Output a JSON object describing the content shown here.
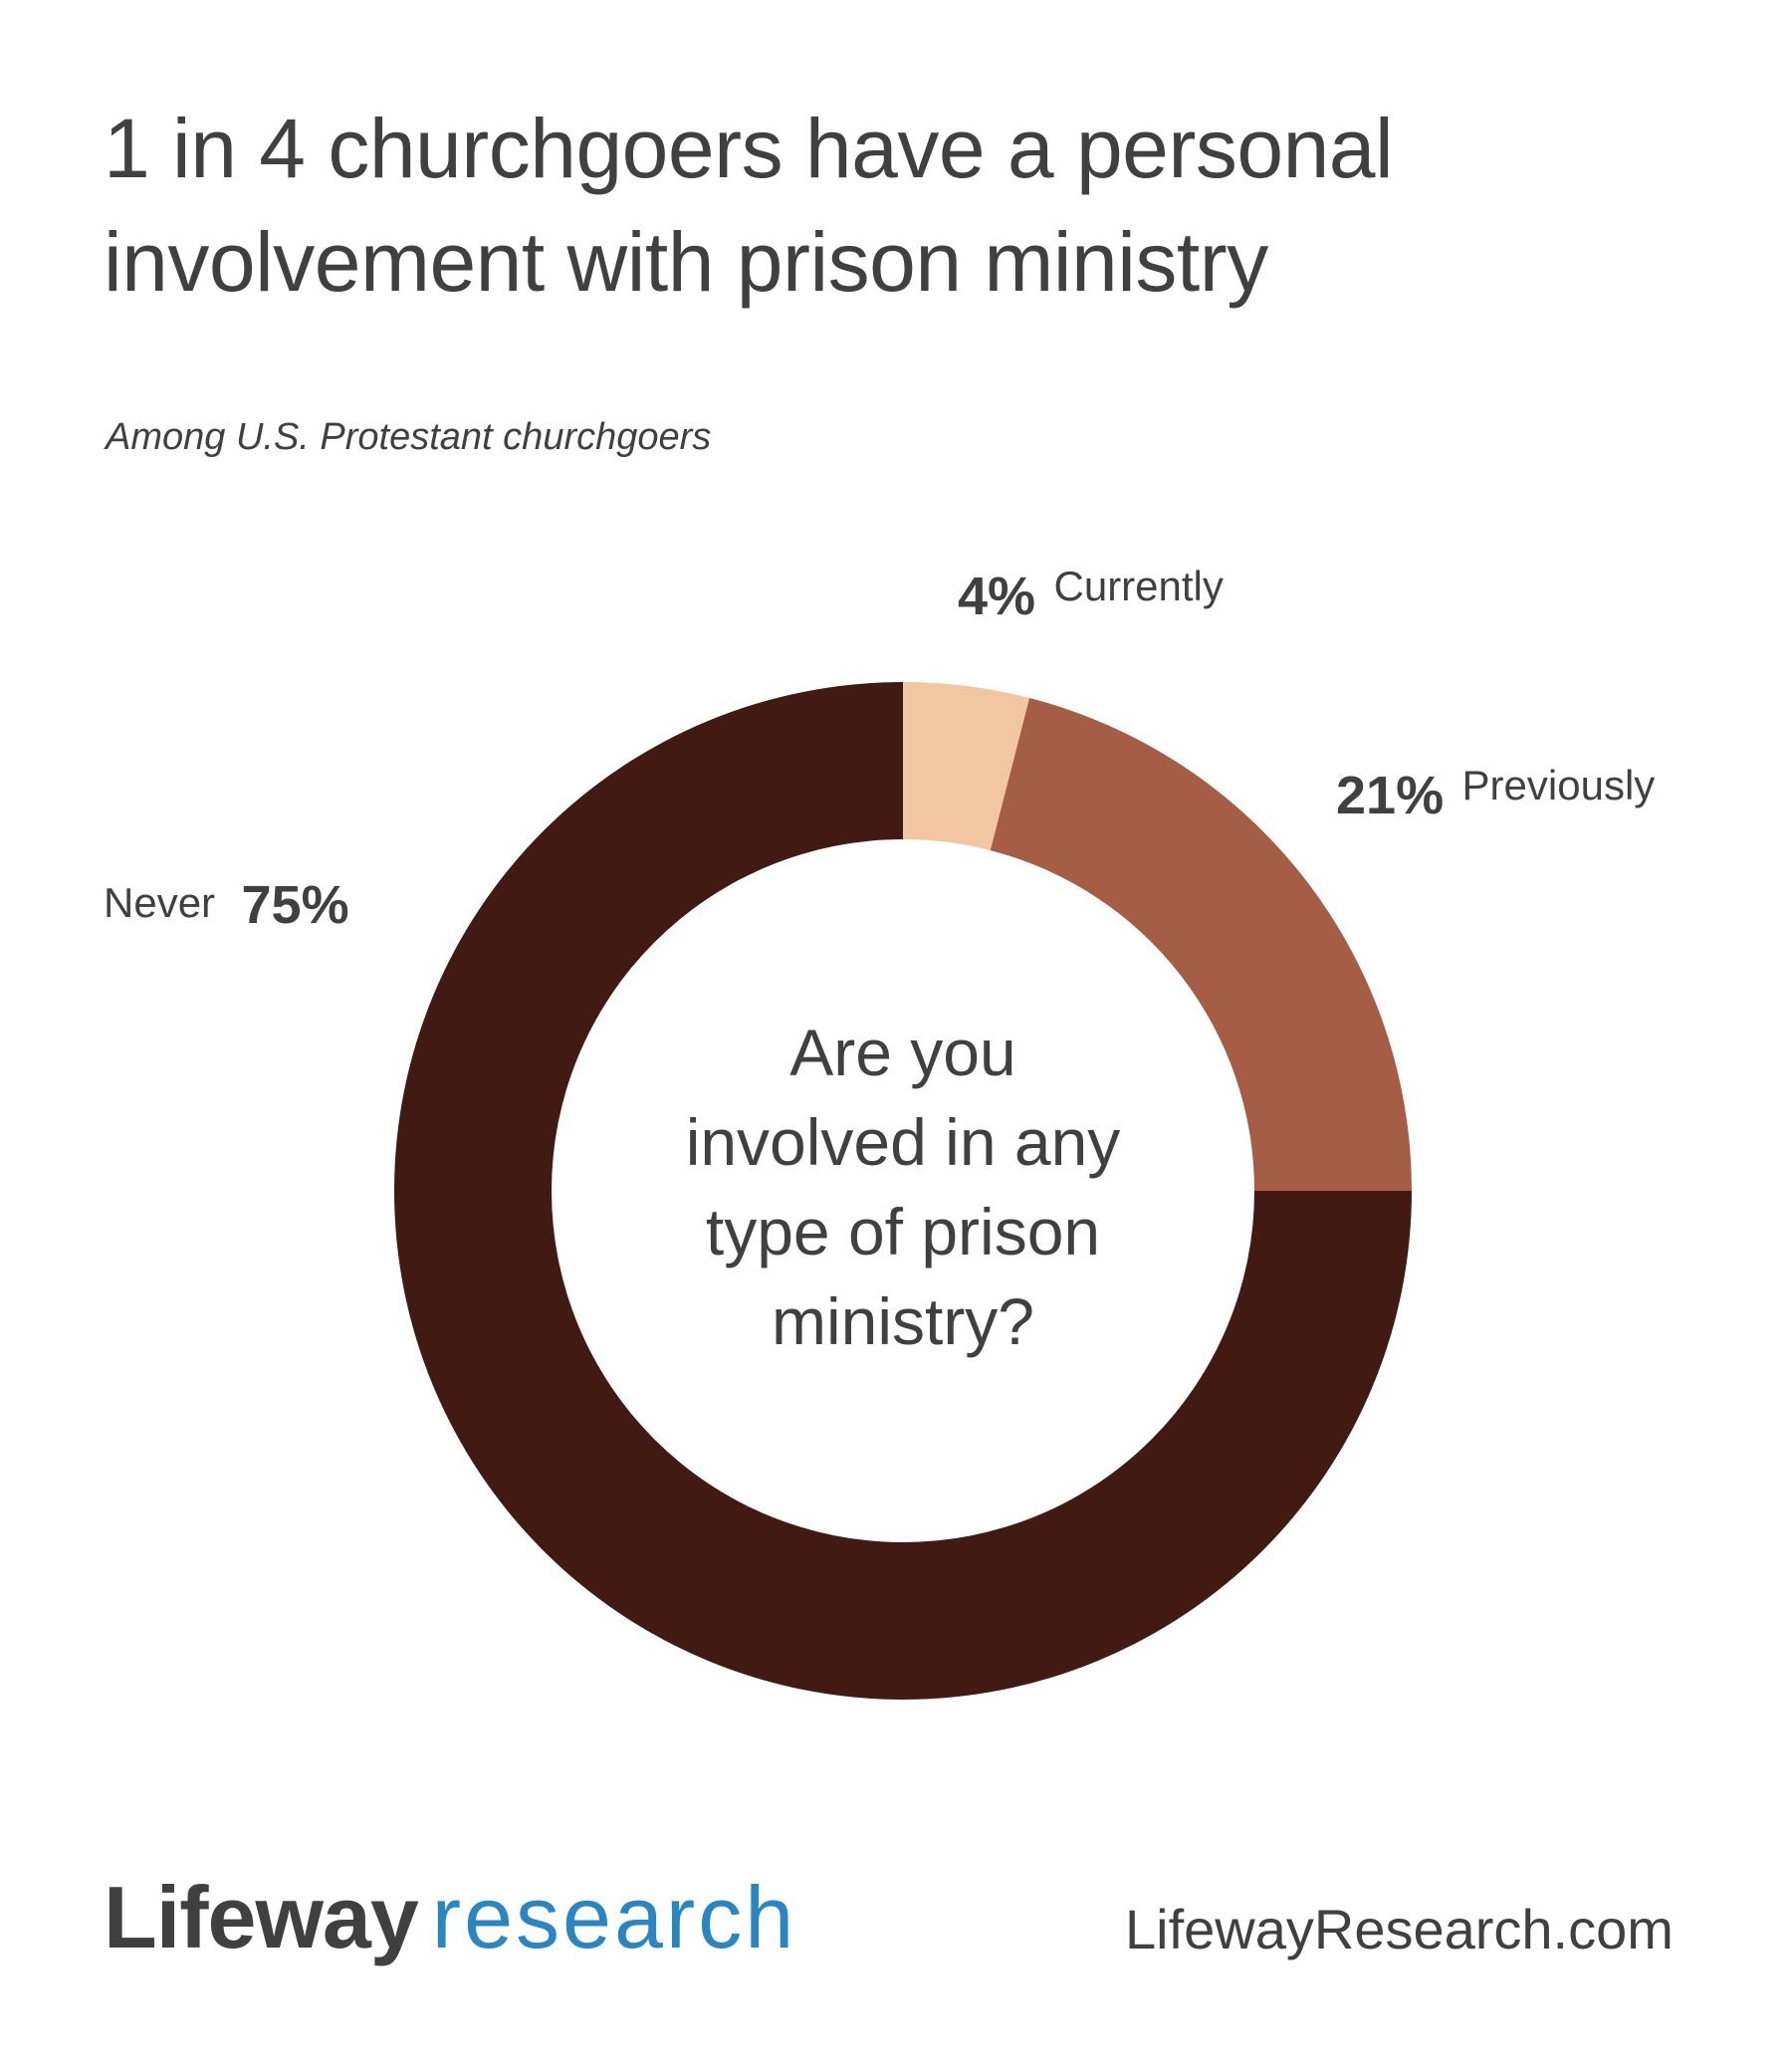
{
  "header": {
    "title": "1 in 4 churchgoers have a personal involvement with prison ministry",
    "subtitle": "Among U.S. Protestant churchgoers"
  },
  "chart_data": {
    "type": "pie",
    "variant": "donut",
    "title": "1 in 4 churchgoers have a personal involvement with prison ministry",
    "subtitle": "Among U.S. Protestant churchgoers",
    "center_text": "Are you involved in any type of prison ministry?",
    "categories": [
      "Currently",
      "Previously",
      "Never"
    ],
    "values": [
      4,
      21,
      75
    ],
    "unit": "%",
    "colors": [
      "#f1c6a0",
      "#a55e45",
      "#411a13"
    ],
    "labels": [
      {
        "pct": "4%",
        "category": "Currently"
      },
      {
        "pct": "21%",
        "category": "Previously"
      },
      {
        "pct": "75%",
        "category": "Never"
      }
    ],
    "legend_position": "direct labels"
  },
  "center": {
    "lines": [
      "Are you",
      "involved in any",
      "type of prison",
      "ministry?"
    ]
  },
  "footer": {
    "logo_part1": "Lifeway",
    "logo_part2": "research",
    "url": "LifewayResearch.com",
    "accent_color": "#2a86c2"
  }
}
